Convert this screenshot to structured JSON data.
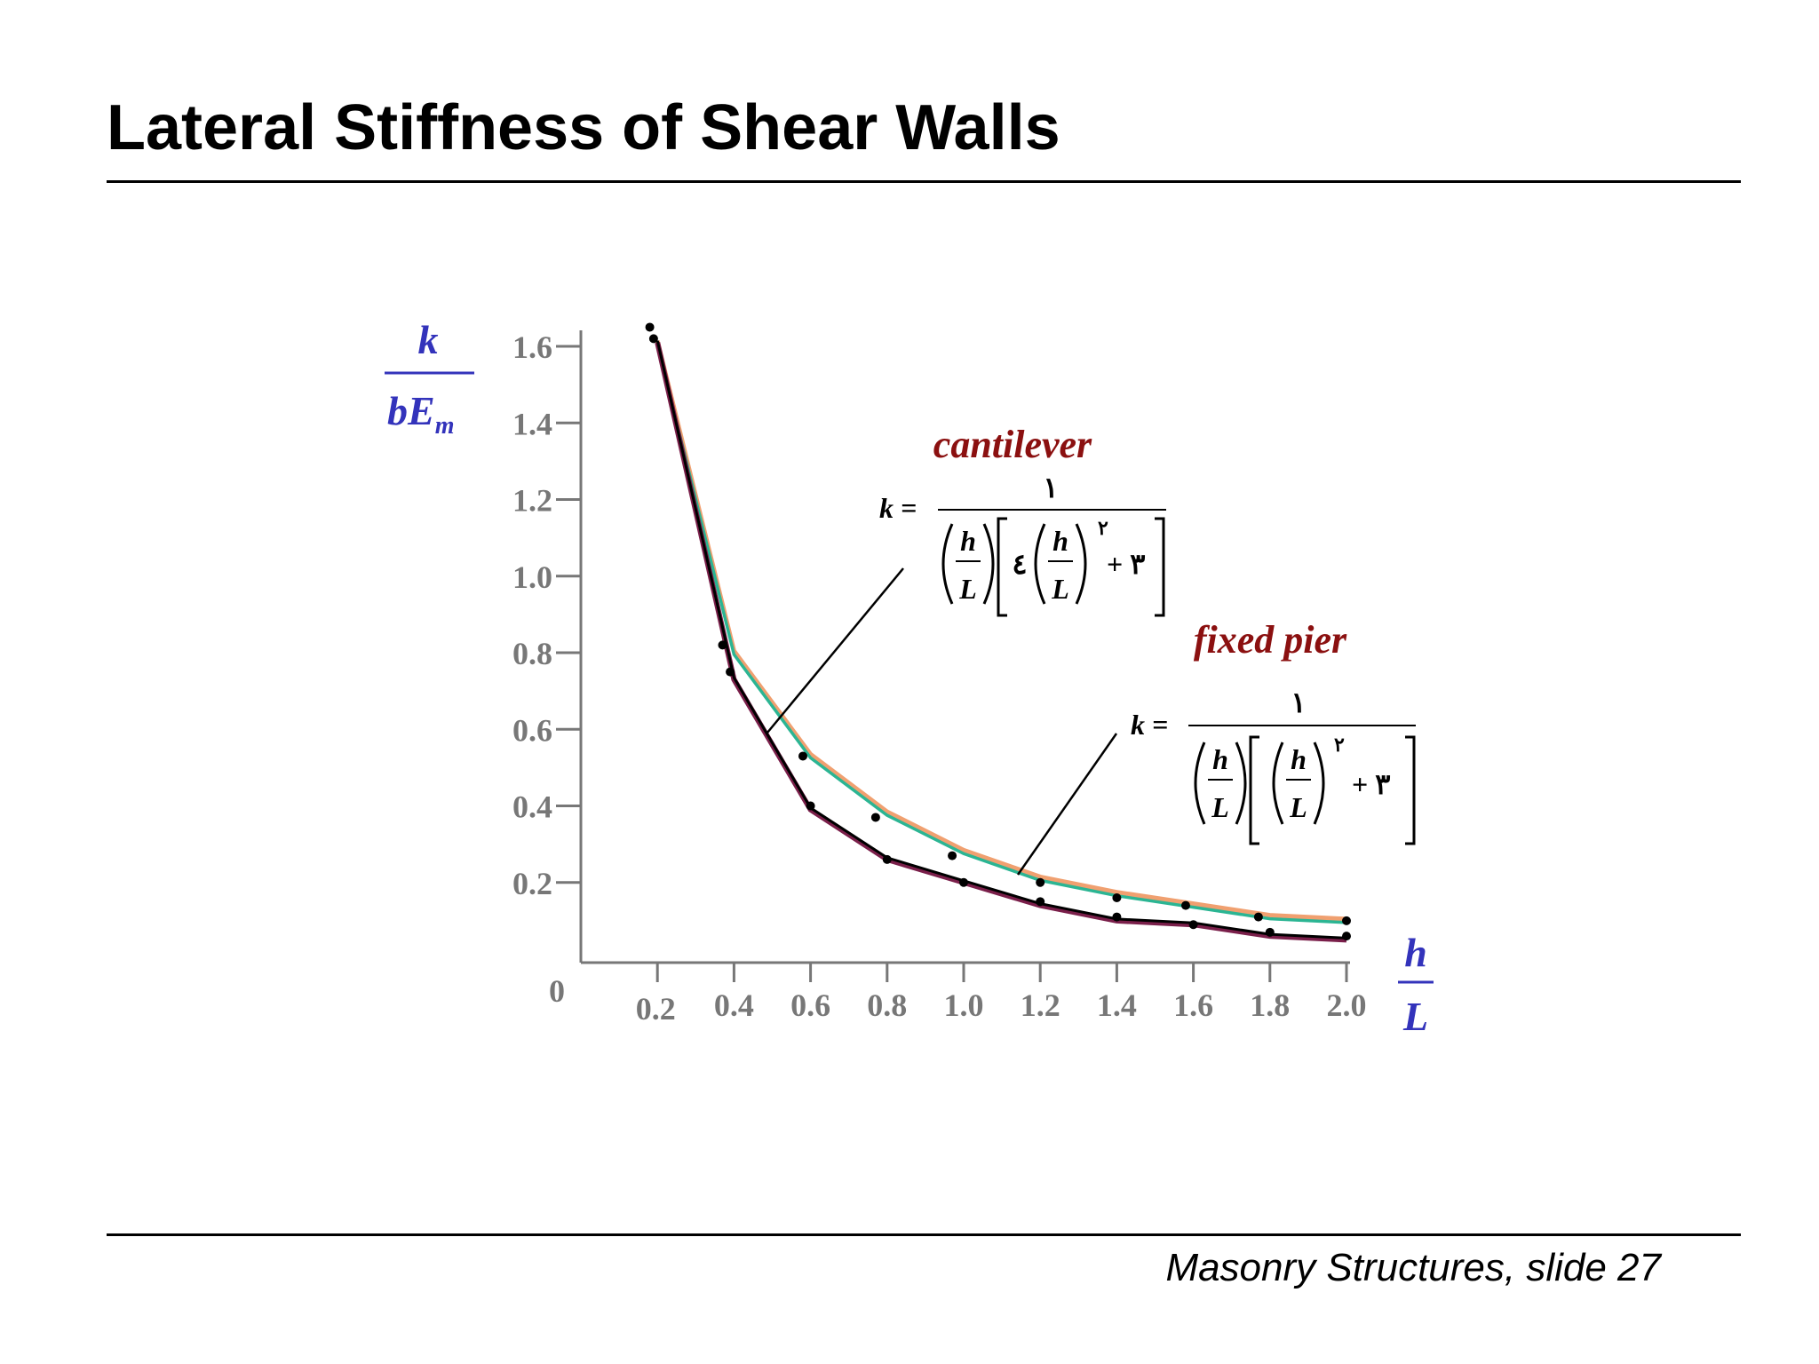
{
  "slide": {
    "title": "Lateral Stiffness of Shear Walls",
    "footer": "Masonry Structures, slide 27"
  },
  "colors": {
    "axis": "#777777",
    "axis_label": "#3333bb",
    "annotation": "#8b1010",
    "cantilever_line": "#7a1f4a",
    "fixed_line_1": "#f0a070",
    "fixed_line_2": "#2bb593",
    "points": "#000000"
  },
  "chart_data": {
    "type": "line",
    "ylabel": {
      "numerator": "k",
      "denominator": "bE",
      "subscript": "m"
    },
    "xlabel": {
      "numerator": "h",
      "denominator": "L"
    },
    "origin_label": "0",
    "xlim": [
      0,
      2.0
    ],
    "ylim": [
      0,
      1.6
    ],
    "x_ticks": [
      0.2,
      0.4,
      0.6,
      0.8,
      1.0,
      1.2,
      1.4,
      1.6,
      1.8,
      2.0
    ],
    "x_tick_labels": [
      "0.2",
      "0.4",
      "0.6",
      "0.8",
      "1.0",
      "1.2",
      "1.4",
      "1.6",
      "1.8",
      "2.0"
    ],
    "y_ticks": [
      0.2,
      0.4,
      0.6,
      0.8,
      1.0,
      1.2,
      1.4,
      1.6
    ],
    "y_tick_labels": [
      "0.2",
      "0.4",
      "0.6",
      "0.8",
      "1.0",
      "1.2",
      "1.4",
      "1.6"
    ],
    "series": [
      {
        "id": "cantilever",
        "x": [
          0.2,
          0.4,
          0.6,
          0.8,
          1.0,
          1.2,
          1.4,
          1.6,
          1.8,
          2.0
        ],
        "y": [
          1.61,
          0.73,
          0.39,
          0.26,
          0.2,
          0.14,
          0.1,
          0.09,
          0.06,
          0.05
        ],
        "points": [
          [
            0.18,
            1.65
          ],
          [
            0.19,
            1.62
          ],
          [
            0.37,
            0.82
          ],
          [
            0.39,
            0.75
          ],
          [
            0.6,
            0.4
          ],
          [
            0.8,
            0.26
          ],
          [
            1.0,
            0.2
          ],
          [
            1.2,
            0.15
          ],
          [
            1.4,
            0.11
          ],
          [
            1.6,
            0.09
          ],
          [
            1.8,
            0.07
          ],
          [
            2.0,
            0.06
          ]
        ]
      },
      {
        "id": "fixed pier",
        "x": [
          0.2,
          0.4,
          0.6,
          0.8,
          1.0,
          1.2,
          1.4,
          1.6,
          1.8,
          2.0
        ],
        "y": [
          1.61,
          0.8,
          0.53,
          0.38,
          0.28,
          0.21,
          0.17,
          0.14,
          0.11,
          0.1
        ],
        "points": [
          [
            0.58,
            0.53
          ],
          [
            0.77,
            0.37
          ],
          [
            0.97,
            0.27
          ],
          [
            1.2,
            0.2
          ],
          [
            1.4,
            0.16
          ],
          [
            1.58,
            0.14
          ],
          [
            1.77,
            0.11
          ],
          [
            2.0,
            0.1
          ]
        ]
      }
    ],
    "annotations": [
      {
        "label": "cantilever",
        "formula": {
          "lhs": "k =",
          "numerator": "١",
          "coef": "٤",
          "exponent": "٢",
          "plus": "+ ٣",
          "h": "h",
          "L": "L"
        }
      },
      {
        "label": "fixed pier",
        "formula": {
          "lhs": "k =",
          "numerator": "١",
          "exponent": "٢",
          "plus": "+ ٣",
          "h": "h",
          "L": "L"
        }
      }
    ]
  }
}
